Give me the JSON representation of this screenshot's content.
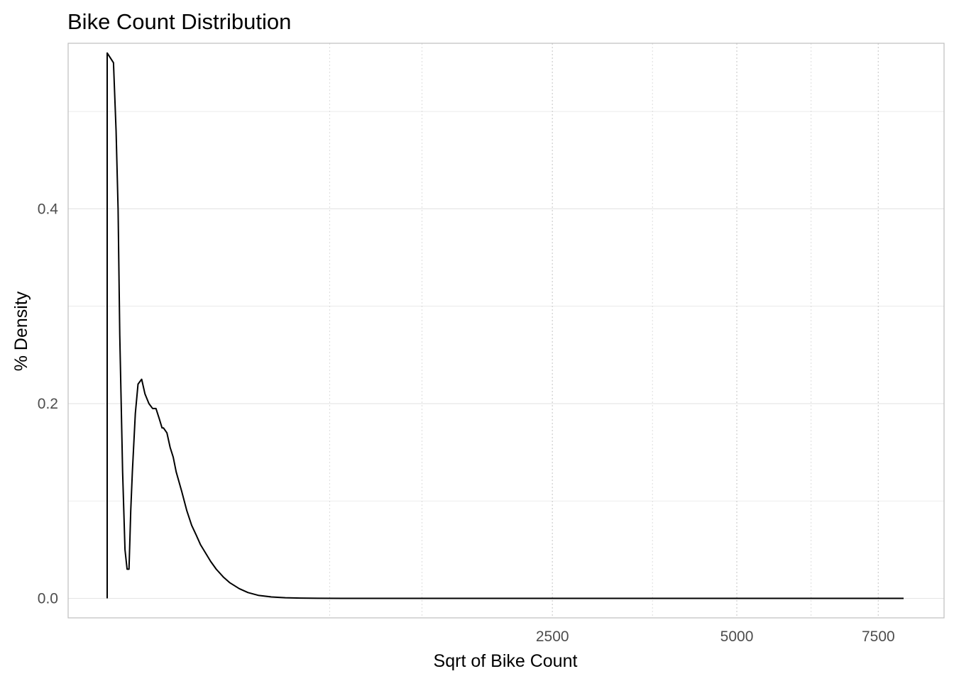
{
  "chart_data": {
    "type": "area",
    "title": "Bike Count Distribution",
    "xlabel": "Sqrt of Bike Count",
    "ylabel": "% Density",
    "x_scale": "sqrt",
    "xlim": [
      0,
      8000
    ],
    "ylim": [
      -0.02,
      0.57
    ],
    "x_ticks": [
      2500,
      5000,
      7500
    ],
    "y_ticks": [
      0.0,
      0.2,
      0.4
    ],
    "y_tick_labels": [
      "0.0",
      "0.2",
      "0.4"
    ],
    "x_tick_labels": [
      "2500",
      "5000",
      "7500"
    ],
    "grid": true,
    "legend": "none",
    "series": [
      {
        "x": [
          0,
          0,
          0.5,
          1,
          1.5,
          2,
          3,
          4,
          5,
          6,
          6.5,
          7,
          8,
          10,
          12,
          15,
          18,
          22,
          26,
          30,
          34,
          38,
          40,
          45,
          50,
          55,
          60,
          70,
          80,
          90,
          100,
          110,
          120,
          135,
          150,
          170,
          190,
          220,
          250,
          290,
          340,
          400,
          470,
          560,
          700,
          900,
          1200,
          2000,
          3500,
          5500,
          8000
        ],
        "y": [
          0,
          0.56,
          0.55,
          0.48,
          0.4,
          0.27,
          0.13,
          0.05,
          0.03,
          0.03,
          0.06,
          0.09,
          0.13,
          0.19,
          0.22,
          0.225,
          0.21,
          0.2,
          0.195,
          0.195,
          0.185,
          0.175,
          0.175,
          0.17,
          0.155,
          0.145,
          0.13,
          0.11,
          0.09,
          0.075,
          0.065,
          0.055,
          0.048,
          0.038,
          0.03,
          0.022,
          0.016,
          0.01,
          0.006,
          0.003,
          0.0015,
          0.0007,
          0.0003,
          0.0001,
          5e-05,
          0,
          0,
          0,
          0,
          0,
          0
        ],
        "color": "#000000",
        "fill": "none"
      }
    ]
  },
  "colors": {
    "grid_major": "#e6e6e6",
    "grid_minor": "#d4d4d4",
    "frame": "#bdbdbd",
    "line": "#000000"
  }
}
